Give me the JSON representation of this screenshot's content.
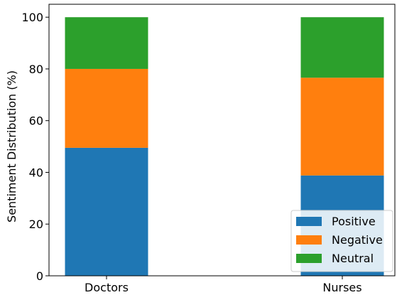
{
  "chart_data": {
    "type": "bar",
    "stacked": true,
    "title": "",
    "xlabel": "",
    "ylabel": "Sentiment Distribution (%)",
    "categories": [
      "Doctors",
      "Nurses"
    ],
    "series": [
      {
        "name": "Positive",
        "color": "#1f77b4",
        "values": [
          49.5,
          38.8
        ]
      },
      {
        "name": "Negative",
        "color": "#ff7f0e",
        "values": [
          30.5,
          37.8
        ]
      },
      {
        "name": "Neutral",
        "color": "#2ca02c",
        "values": [
          20.0,
          23.4
        ]
      }
    ],
    "ylim": [
      0,
      105
    ],
    "yticks": [
      "0",
      "20",
      "40",
      "60",
      "80",
      "100"
    ],
    "grid": false,
    "legend_position": "lower-right"
  }
}
